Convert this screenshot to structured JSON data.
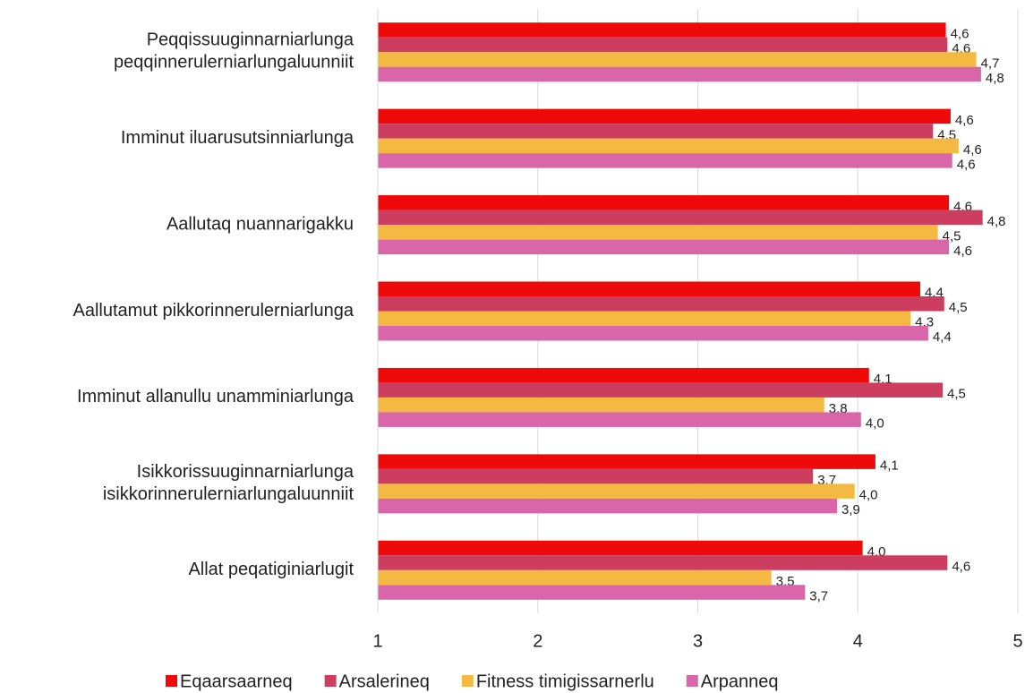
{
  "chart_data": {
    "type": "bar",
    "orientation": "horizontal",
    "categories": [
      "Peqqissuuginnarniarlunga\npeqqinnerulerniarlungaluunniit",
      "Imminut iluarusutsinniarlunga",
      "Aallutaq nuannarigakku",
      "Aallutamut pikkorinnerulerniarlunga",
      "Imminut allanullu unamminiarlunga",
      "Isikkorissuuginnarniarlunga\nisikkorinnerulerniarlungaluunniit",
      "Allat peqatiginiarlugit"
    ],
    "series": [
      {
        "name": "Eqaarsaarneq",
        "color": "#ee0a0a",
        "values": [
          4.55,
          4.58,
          4.57,
          4.39,
          4.07,
          4.11,
          4.03
        ],
        "value_labels": [
          "4,6",
          "4,6",
          "4,6",
          "4,4",
          "4,1",
          "4,1",
          "4,0"
        ]
      },
      {
        "name": "Arsalerineq",
        "color": "#cc3d5f",
        "values": [
          4.56,
          4.47,
          4.78,
          4.54,
          4.53,
          3.72,
          4.56
        ],
        "value_labels": [
          "4,6",
          "4,5",
          "4,8",
          "4,5",
          "4,5",
          "3,7",
          "4,6"
        ]
      },
      {
        "name": "Fitness timigissarnerlu",
        "color": "#f4b942",
        "values": [
          4.74,
          4.63,
          4.5,
          4.33,
          3.79,
          3.98,
          3.46
        ],
        "value_labels": [
          "4,7",
          "4,6",
          "4,5",
          "4,3",
          "3,8",
          "4,0",
          "3,5"
        ]
      },
      {
        "name": "Arpanneq",
        "color": "#d966a8",
        "values": [
          4.77,
          4.59,
          4.57,
          4.44,
          4.02,
          3.87,
          3.67
        ],
        "value_labels": [
          "4,8",
          "4,6",
          "4,6",
          "4,4",
          "4,0",
          "3,9",
          "3,7"
        ]
      }
    ],
    "xlim": [
      1,
      5
    ],
    "xticks": [
      1,
      2,
      3,
      4,
      5
    ],
    "grid": true,
    "legend": "bottom"
  }
}
